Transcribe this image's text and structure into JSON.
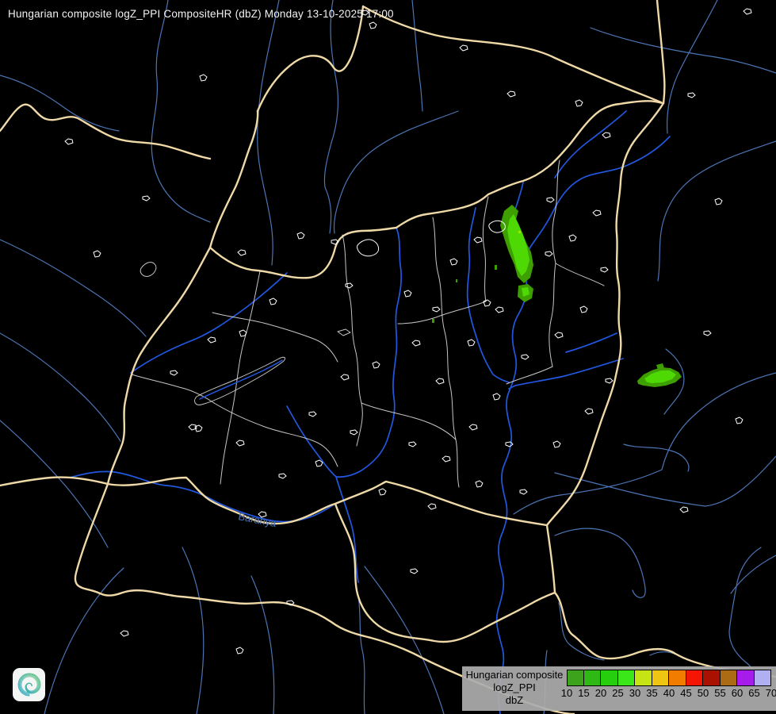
{
  "header": {
    "title": "Hungarian composite logZ_PPI CompositeHR (dbZ) Monday 13-10-2025 17:00",
    "title_color": "#f2f2f2"
  },
  "legend": {
    "line1": "Hungarian composite",
    "line2": "logZ_PPI",
    "line3": "dbZ",
    "ticks": [
      "10",
      "15",
      "20",
      "25",
      "30",
      "35",
      "40",
      "45",
      "50",
      "55",
      "60",
      "65",
      "70"
    ],
    "colors": [
      "#3da31d",
      "#2fb915",
      "#25cf0d",
      "#3ae81a",
      "#c6e414",
      "#eec513",
      "#f17c00",
      "#f51505",
      "#a91100",
      "#ab6b14",
      "#a51ceb",
      "#b0aff2"
    ],
    "background_rgba": "rgba(172,172,172,0.93)",
    "text_color": "#000000"
  },
  "map": {
    "colors": {
      "background": "#000000",
      "country_border": "#efd9a7",
      "county_border": "#e8e8e8",
      "river_major": "#2257e0",
      "river_minor": "#4c74b4",
      "city_outline": "#ffffff",
      "echo_bright": "#4ed904",
      "echo_dark": "#3da000",
      "label_color": "#4c74b4"
    },
    "region_label": "Baranya",
    "echoes": [
      {
        "location": "north-central",
        "dbz_range": "10-25",
        "color": "green"
      },
      {
        "location": "east",
        "dbz_range": "10-25",
        "color": "green"
      }
    ]
  },
  "logo": {
    "icon": "spiral-logo",
    "teal": "#2ea8c9",
    "green": "#67c57c",
    "background": "#f4f6f6"
  }
}
